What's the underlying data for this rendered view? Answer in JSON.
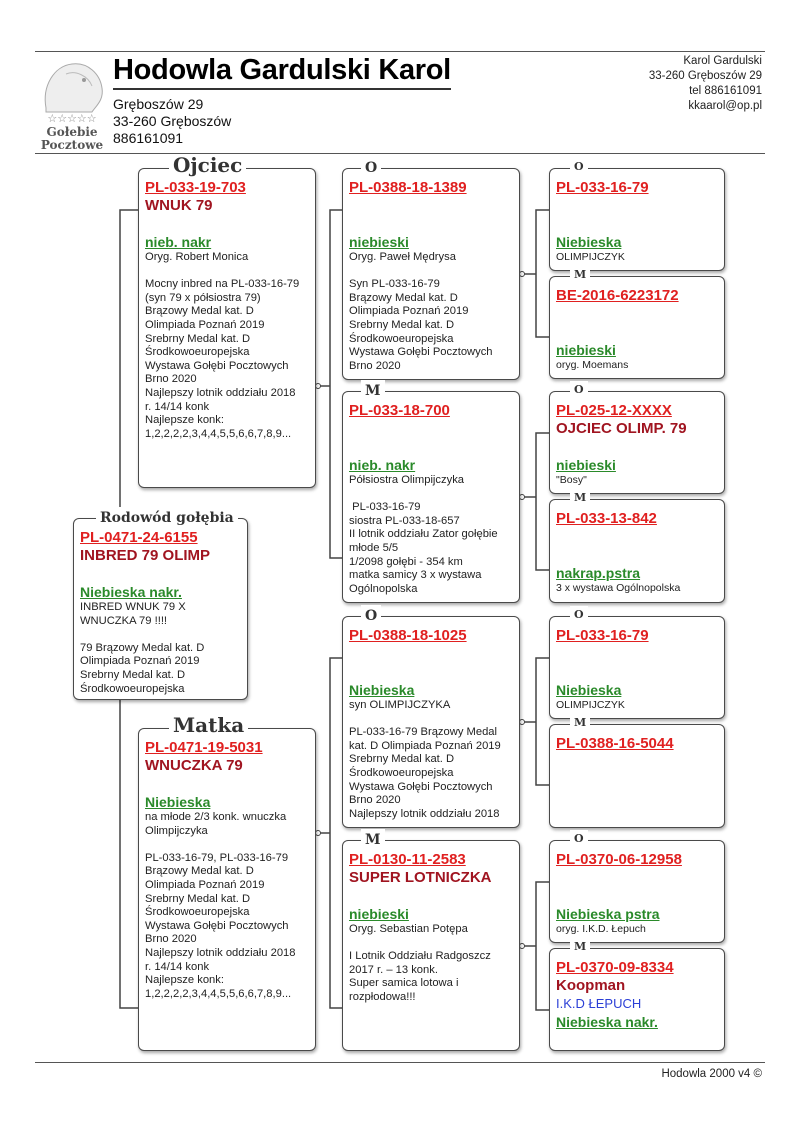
{
  "header": {
    "title": "Hodowla Gardulski Karol",
    "address_lines": [
      "Gręboszów 29",
      "33-260 Gręboszów",
      "886161091"
    ],
    "logo_text": [
      "Gołebie",
      "Pocztowe"
    ],
    "contact_lines": [
      "Karol Gardulski",
      "33-260 Gręboszów 29",
      "tel 886161091",
      "kkaarol@op.pl"
    ]
  },
  "footer": "Hodowla 2000 v4 ©",
  "colors": {
    "ring": "#e02020",
    "name": "#a01420",
    "color_text": "#2a8a2a",
    "breeder": "#2b3fd6"
  },
  "pedigree": [
    {
      "id": "main",
      "legend": "Rodowód gołębia",
      "ring": "PL-0471-24-6155",
      "name": "INBRED 79 OLIMP",
      "breeder": "",
      "color": "Niebieska nakr.",
      "notes": [
        "INBRED WNUK 79 X",
        "WNUCZKA 79 !!!!",
        "",
        "79 Brązowy Medal kat. D",
        "Olimpiada Poznań 2019",
        "Srebrny Medal kat. D",
        "Środkowoeuropejska"
      ]
    },
    {
      "id": "f",
      "legend": "Ojciec",
      "ring": "PL-033-19-703",
      "name": "WNUK 79",
      "breeder": "",
      "color": "nieb. nakr",
      "notes": [
        "Oryg. Robert Monica",
        "",
        "Mocny inbred na PL-033-16-79",
        "(syn 79 x półsiostra 79)",
        "Brązowy Medal kat. D",
        "Olimpiada Poznań 2019",
        "Srebrny Medal kat. D",
        "Środkowoeuropejska",
        "Wystawa Gołębi Pocztowych",
        "Brno 2020",
        "Najlepszy lotnik oddziału 2018",
        "r. 14/14 konk",
        "Najlepsze konk:",
        "1,2,2,2,2,3,4,4,5,5,6,6,7,8,9..."
      ]
    },
    {
      "id": "m",
      "legend": "Matka",
      "ring": "PL-0471-19-5031",
      "name": "WNUCZKA 79",
      "breeder": "",
      "color": "Niebieska",
      "notes": [
        "na młode 2/3 konk. wnuczka",
        "Olimpijczyka",
        "",
        "PL-033-16-79, PL-033-16-79",
        "Brązowy Medal kat. D",
        "Olimpiada Poznań 2019",
        "Srebrny Medal kat. D",
        "Środkowoeuropejska",
        "Wystawa Gołębi Pocztowych",
        "Brno 2020",
        "Najlepszy lotnik oddziału 2018",
        "r. 14/14 konk",
        "Najlepsze konk:",
        "1,2,2,2,2,3,4,4,5,5,6,6,7,8,9..."
      ]
    },
    {
      "id": "ff",
      "legend": "O",
      "ring": "PL-0388-18-1389",
      "name": "",
      "breeder": "",
      "color": "niebieski",
      "notes": [
        "Oryg. Paweł Mędrysa",
        "",
        "Syn PL-033-16-79",
        "Brązowy Medal kat. D",
        "Olimpiada Poznań 2019",
        "Srebrny Medal kat. D",
        "Środkowoeuropejska",
        "Wystawa Gołębi Pocztowych",
        "Brno 2020"
      ]
    },
    {
      "id": "fm",
      "legend": "M",
      "ring": "PL-033-18-700",
      "name": "",
      "breeder": "",
      "color": "nieb. nakr",
      "notes": [
        "Półsiostra Olimpijczyka",
        "",
        " PL-033-16-79",
        "siostra PL-033-18-657",
        "II lotnik oddziału Zator gołębie",
        "młode 5/5",
        "1/2098 gołębi - 354 km",
        "matka samicy 3 x wystawa",
        "Ogólnopolska"
      ]
    },
    {
      "id": "mf",
      "legend": "O",
      "ring": "PL-0388-18-1025",
      "name": "",
      "breeder": "",
      "color": "Niebieska",
      "notes": [
        "syn OLIMPIJCZYKA",
        "",
        "PL-033-16-79 Brązowy Medal",
        "kat. D Olimpiada Poznań 2019",
        "Srebrny Medal kat. D",
        "Środkowoeuropejska",
        "Wystawa Gołębi Pocztowych",
        "Brno 2020",
        "Najlepszy lotnik oddziału 2018"
      ]
    },
    {
      "id": "mm",
      "legend": "M",
      "ring": "PL-0130-11-2583",
      "name": "SUPER LOTNICZKA",
      "breeder": "",
      "color": "niebieski",
      "notes": [
        "Oryg. Sebastian Potępa",
        "",
        "I Lotnik Oddziału Radgoszcz",
        "2017 r. – 13 konk.",
        "Super samica lotowa i",
        "rozpłodowa!!!"
      ]
    },
    {
      "id": "fff",
      "legend": "O",
      "ring": "PL-033-16-79",
      "name": "",
      "breeder": "",
      "color": "Niebieska",
      "notes": [
        "OLIMPIJCZYK"
      ]
    },
    {
      "id": "ffm",
      "legend": "M",
      "ring": "BE-2016-6223172",
      "name": "",
      "breeder": "",
      "color": "niebieski",
      "notes": [
        "oryg. Moemans"
      ]
    },
    {
      "id": "fmf",
      "legend": "O",
      "ring": "PL-025-12-XXXX",
      "name": "OJCIEC OLIMP. 79",
      "breeder": "",
      "color": "niebieski",
      "notes": [
        "\"Bosy\""
      ]
    },
    {
      "id": "fmm",
      "legend": "M",
      "ring": "PL-033-13-842",
      "name": "",
      "breeder": "",
      "color": "nakrap.pstra",
      "notes": [
        "3 x wystawa Ogólnopolska"
      ]
    },
    {
      "id": "mff",
      "legend": "O",
      "ring": "PL-033-16-79",
      "name": "",
      "breeder": "",
      "color": "Niebieska",
      "notes": [
        "OLIMPIJCZYK"
      ]
    },
    {
      "id": "mfm",
      "legend": "M",
      "ring": "PL-0388-16-5044",
      "name": "",
      "breeder": "",
      "color": "",
      "notes": []
    },
    {
      "id": "mmf",
      "legend": "O",
      "ring": "PL-0370-06-12958",
      "name": "",
      "breeder": "",
      "color": "Niebieska pstra",
      "notes": [
        "oryg. I.K.D. Łepuch"
      ]
    },
    {
      "id": "mmm",
      "legend": "M",
      "ring": "PL-0370-09-8334",
      "name": "Koopman",
      "breeder": "I.K.D ŁEPUCH",
      "color": "Niebieska nakr.",
      "notes": []
    }
  ]
}
